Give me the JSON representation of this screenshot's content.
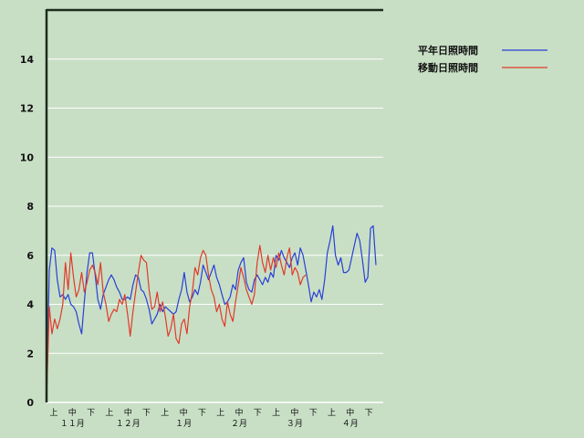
{
  "chart_data": {
    "type": "line",
    "title": "",
    "xlabel": "",
    "ylabel": "",
    "ylim": [
      0,
      16
    ],
    "yticks": [
      0,
      2,
      4,
      6,
      8,
      10,
      12,
      14
    ],
    "grid": true,
    "legend_position": "top-right",
    "x_ticks": [
      {
        "tick": "上",
        "month": "11月"
      },
      {
        "tick": "中",
        "month": ""
      },
      {
        "tick": "下",
        "month": ""
      },
      {
        "tick": "上",
        "month": "12月"
      },
      {
        "tick": "中",
        "month": ""
      },
      {
        "tick": "下",
        "month": ""
      },
      {
        "tick": "上",
        "month": "1月"
      },
      {
        "tick": "中",
        "month": ""
      },
      {
        "tick": "下",
        "month": ""
      },
      {
        "tick": "上",
        "month": "2月"
      },
      {
        "tick": "中",
        "month": ""
      },
      {
        "tick": "下",
        "month": ""
      },
      {
        "tick": "上",
        "month": "3月"
      },
      {
        "tick": "中",
        "month": ""
      },
      {
        "tick": "下",
        "month": ""
      },
      {
        "tick": "上",
        "month": "4月"
      },
      {
        "tick": "中",
        "month": ""
      },
      {
        "tick": "下",
        "month": ""
      }
    ],
    "month_labels": [
      "１１月",
      "１２月",
      "１月",
      "２月",
      "３月",
      "４月"
    ],
    "series": [
      {
        "name": "平年日照時間",
        "color": "#2a3fd6",
        "values": [
          0.0,
          5.4,
          6.3,
          6.2,
          5.0,
          4.3,
          4.4,
          4.2,
          4.4,
          4.0,
          3.9,
          3.7,
          3.2,
          2.8,
          4.1,
          5.3,
          6.1,
          6.1,
          5.2,
          4.2,
          3.8,
          4.4,
          4.7,
          5.0,
          5.2,
          5.0,
          4.7,
          4.5,
          4.2,
          4.2,
          4.3,
          4.2,
          4.8,
          5.2,
          5.1,
          4.6,
          4.5,
          4.2,
          3.8,
          3.2,
          3.4,
          3.6,
          4.0,
          3.7,
          3.9,
          3.8,
          3.7,
          3.6,
          3.7,
          4.2,
          4.6,
          5.3,
          4.5,
          4.1,
          4.3,
          4.6,
          4.4,
          4.9,
          5.6,
          5.3,
          5.0,
          5.3,
          5.6,
          5.1,
          4.8,
          4.4,
          4.0,
          4.1,
          4.3,
          4.8,
          4.6,
          5.4,
          5.7,
          5.9,
          4.9,
          4.6,
          4.5,
          5.0,
          5.2,
          5.0,
          4.8,
          5.1,
          4.9,
          5.3,
          5.1,
          6.0,
          5.8,
          6.2,
          5.9,
          5.7,
          5.5,
          5.9,
          6.1,
          5.6,
          6.3,
          6.0,
          5.4,
          4.8,
          4.1,
          4.5,
          4.3,
          4.6,
          4.2,
          5.0,
          6.1,
          6.6,
          7.2,
          6.0,
          5.6,
          5.9,
          5.3,
          5.3,
          5.4,
          5.9,
          6.4,
          6.9,
          6.6,
          5.8,
          4.9,
          5.1,
          7.1,
          7.2,
          5.6
        ]
      },
      {
        "name": "移動日照時間",
        "color": "#e03a2a",
        "values": [
          0.0,
          3.9,
          2.8,
          3.4,
          3.0,
          3.4,
          4.0,
          5.7,
          4.6,
          6.1,
          5.1,
          4.3,
          4.6,
          5.3,
          4.5,
          4.9,
          5.4,
          5.6,
          5.3,
          4.8,
          5.7,
          4.5,
          4.0,
          3.3,
          3.6,
          3.8,
          3.7,
          4.2,
          4.0,
          4.4,
          3.6,
          2.7,
          3.7,
          4.5,
          5.3,
          6.0,
          5.8,
          5.7,
          4.6,
          3.8,
          3.9,
          4.5,
          3.7,
          4.1,
          3.5,
          2.7,
          3.0,
          3.6,
          2.6,
          2.4,
          3.2,
          3.4,
          2.8,
          3.9,
          4.5,
          5.5,
          5.2,
          5.9,
          6.2,
          6.0,
          5.2,
          4.6,
          4.3,
          3.7,
          4.0,
          3.4,
          3.1,
          4.1,
          3.6,
          3.3,
          4.1,
          4.8,
          5.5,
          5.1,
          4.6,
          4.3,
          4.0,
          4.4,
          5.7,
          6.4,
          5.7,
          5.3,
          6.0,
          5.4,
          5.9,
          5.5,
          6.1,
          5.6,
          5.2,
          5.9,
          6.3,
          5.2,
          5.5,
          5.3,
          4.8,
          5.1,
          5.2
        ]
      }
    ]
  }
}
